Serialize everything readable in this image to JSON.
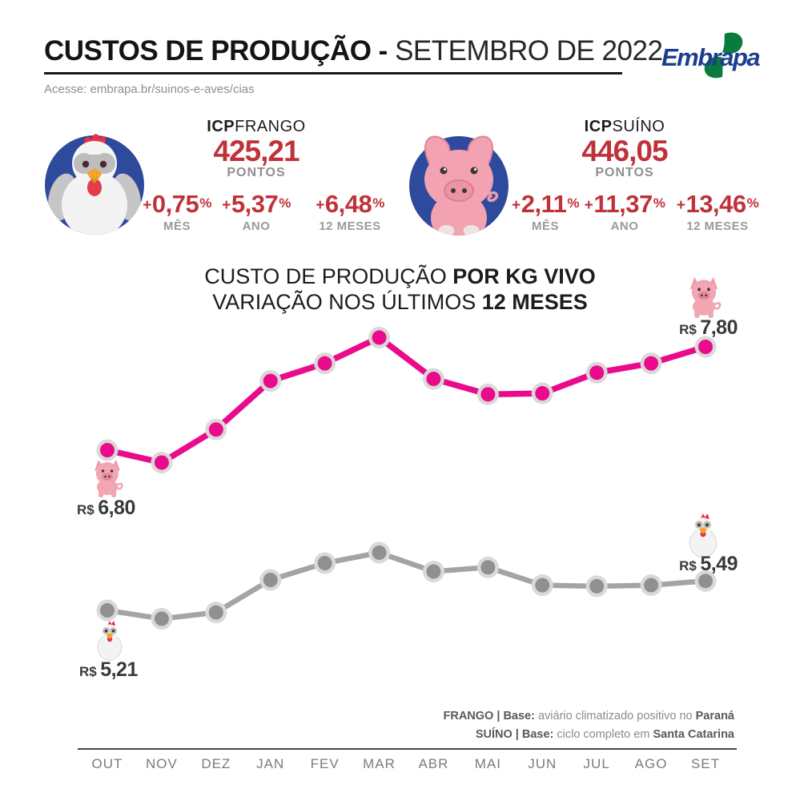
{
  "header": {
    "title_bold": "CUSTOS DE PRODUÇÃO -",
    "title_light": "SETEMBRO DE 2022",
    "subtitle": "Acesse: embrapa.br/suinos-e-aves/cias",
    "logo_text": "Embrapa"
  },
  "indices": [
    {
      "id": "frango",
      "icon": "chicken-icon",
      "name_bold": "ICP",
      "name_light": "FRANGO",
      "points": "425,21",
      "points_label": "PONTOS",
      "deltas": [
        {
          "sign": "+",
          "value": "0,75",
          "unit": "%",
          "label": "MÊS"
        },
        {
          "sign": "+",
          "value": "5,37",
          "unit": "%",
          "label": "ANO"
        },
        {
          "sign": "+",
          "value": "6,48",
          "unit": "%",
          "label": "12 MESES"
        }
      ]
    },
    {
      "id": "suino",
      "icon": "pig-icon",
      "name_bold": "ICP",
      "name_light": "SUÍNO",
      "points": "446,05",
      "points_label": "PONTOS",
      "deltas": [
        {
          "sign": "+",
          "value": "2,11",
          "unit": "%",
          "label": "MÊS"
        },
        {
          "sign": "+",
          "value": "11,37",
          "unit": "%",
          "label": "ANO"
        },
        {
          "sign": "+",
          "value": "13,46",
          "unit": "%",
          "label": "12 MESES"
        }
      ]
    }
  ],
  "chart_data": {
    "type": "line",
    "title": {
      "line1_light": "CUSTO DE PRODUÇÃO ",
      "line1_bold": "POR KG VIVO",
      "line2_light": "VARIAÇÃO NOS ÚLTIMOS ",
      "line2_bold": "12 MESES"
    },
    "categories": [
      "OUT",
      "NOV",
      "DEZ",
      "JAN",
      "FEV",
      "MAR",
      "ABR",
      "MAI",
      "JUN",
      "JUL",
      "AGO",
      "SET"
    ],
    "series": [
      {
        "name": "SUÍNO",
        "color": "#ea0b8c",
        "line_color": "#ea0b8c",
        "values": [
          6.8,
          6.68,
          7.0,
          7.47,
          7.64,
          7.89,
          7.49,
          7.34,
          7.35,
          7.55,
          7.64,
          7.8
        ],
        "first_label": {
          "currency": "R$",
          "amount": "6,80"
        },
        "last_label": {
          "currency": "R$",
          "amount": "7,80"
        }
      },
      {
        "name": "FRANGO",
        "color": "#909090",
        "line_color": "#a4a4a4",
        "values": [
          5.21,
          5.13,
          5.19,
          5.5,
          5.66,
          5.76,
          5.58,
          5.62,
          5.45,
          5.44,
          5.45,
          5.49
        ],
        "first_label": {
          "currency": "R$",
          "amount": "5,21"
        },
        "last_label": {
          "currency": "R$",
          "amount": "5,49"
        }
      }
    ],
    "legend_position": "none",
    "grid": false,
    "footnotes": [
      {
        "bold_lead": "FRANGO | Base:",
        "text": " aviário climatizado positivo no ",
        "bold_tail": "Paraná"
      },
      {
        "bold_lead": "SUÍNO | Base:",
        "text": " ciclo completo em ",
        "bold_tail": "Santa Catarina"
      }
    ]
  },
  "colors": {
    "accent_red": "#c0323a",
    "brand_blue": "#1d3e8f",
    "badge_blue": "#2e4a9c",
    "suino_pink": "#ea0b8c",
    "frango_gray": "#909090"
  }
}
